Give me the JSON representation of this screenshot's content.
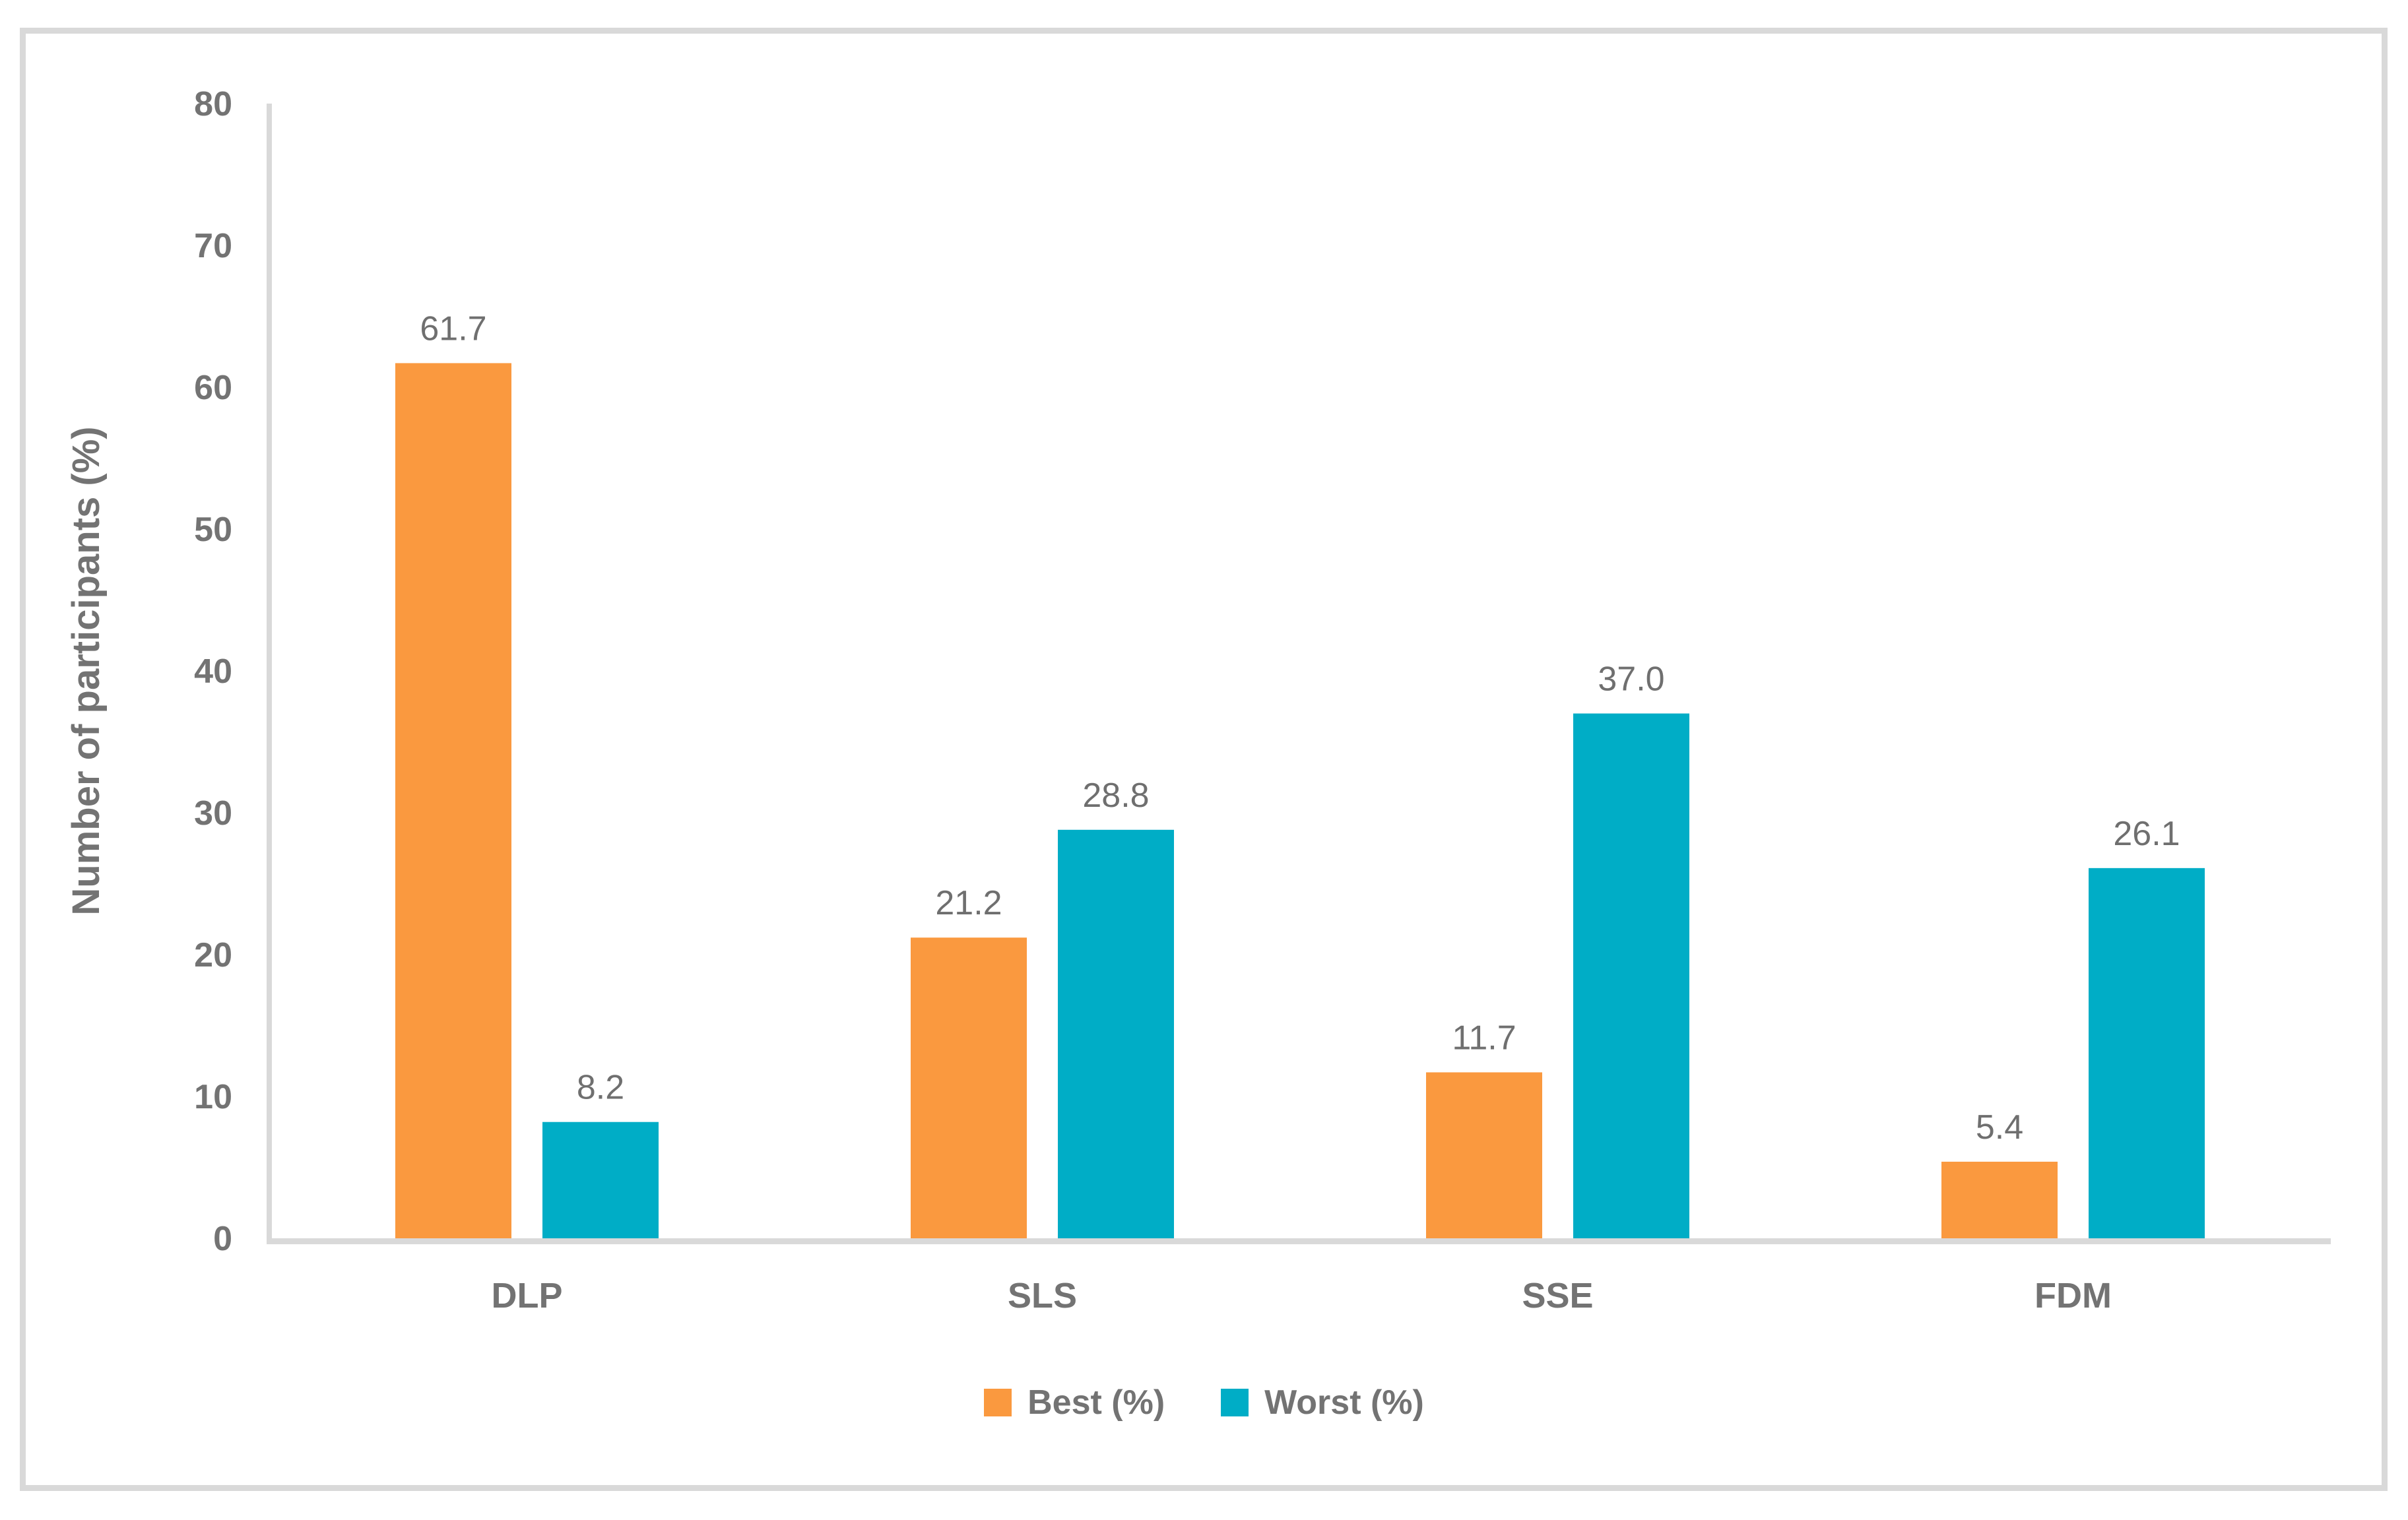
{
  "colors": {
    "background": "#ffffff",
    "frame": "#d9d9d9",
    "axis_line": "#d9d9d9",
    "text": "#737373",
    "data_label_text": "#6f6f6f",
    "series_best": "#fa993f",
    "series_worst": "#00adc6"
  },
  "chart_data": {
    "type": "bar",
    "title": "",
    "categories": [
      "DLP",
      "SLS",
      "SSE",
      "FDM"
    ],
    "series": [
      {
        "name": "Best (%)",
        "color": "#fa993f",
        "values": [
          61.7,
          21.2,
          11.7,
          5.4
        ],
        "labels": [
          "61.7",
          "21.2",
          "11.7",
          "5.4"
        ]
      },
      {
        "name": "Worst (%)",
        "color": "#00adc6",
        "values": [
          8.2,
          28.8,
          37.0,
          26.1
        ],
        "labels": [
          "8.2",
          "28.8",
          "37.0",
          "26.1"
        ]
      }
    ],
    "xlabel": "",
    "ylabel": "Number of participants (%)",
    "ylim": [
      0,
      80
    ],
    "yticks": [
      "0",
      "10",
      "20",
      "30",
      "40",
      "50",
      "60",
      "70",
      "80"
    ],
    "grid": false,
    "legend_position": "bottom",
    "legend_entries": [
      "Best (%)",
      "Worst (%)"
    ]
  }
}
